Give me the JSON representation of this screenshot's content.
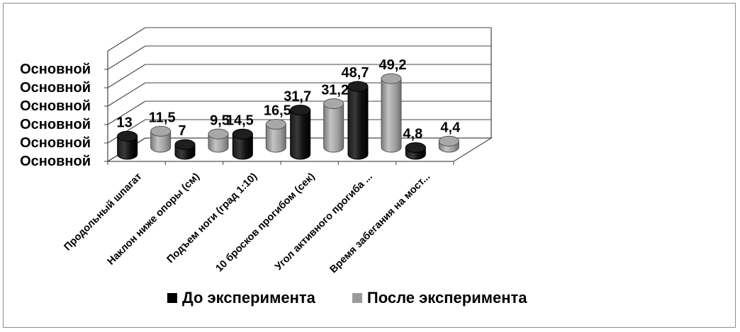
{
  "chart_data": {
    "type": "bar",
    "style": "3d-cylinder",
    "categories": [
      "Продольный шпагат",
      "Наклон ниже опоры (см)",
      "Подъем ноги (град 1:10)",
      "10 бросков прогибом (сек)",
      "Угол активного прогиба ...",
      "Время забегания на мост..."
    ],
    "series": [
      {
        "name": "До эксперимента",
        "color": "#000000",
        "values": [
          13,
          7,
          14.5,
          31.7,
          48.7,
          4.8
        ],
        "labels": [
          "13",
          "7",
          "14,5",
          "31,7",
          "48,7",
          "4,8"
        ]
      },
      {
        "name": "После эксперимента",
        "color": "#9a9a9a",
        "values": [
          11.5,
          9.5,
          16.5,
          31.2,
          49.2,
          4.4
        ],
        "labels": [
          "11,5",
          "9,5",
          "16,5",
          "31,2",
          "49,2",
          "4,4"
        ]
      }
    ],
    "y_tick_labels": [
      "Основной",
      "Основной",
      "Основной",
      "Основной",
      "Основной",
      "Основной"
    ],
    "grid": true,
    "legend_position": "bottom"
  }
}
